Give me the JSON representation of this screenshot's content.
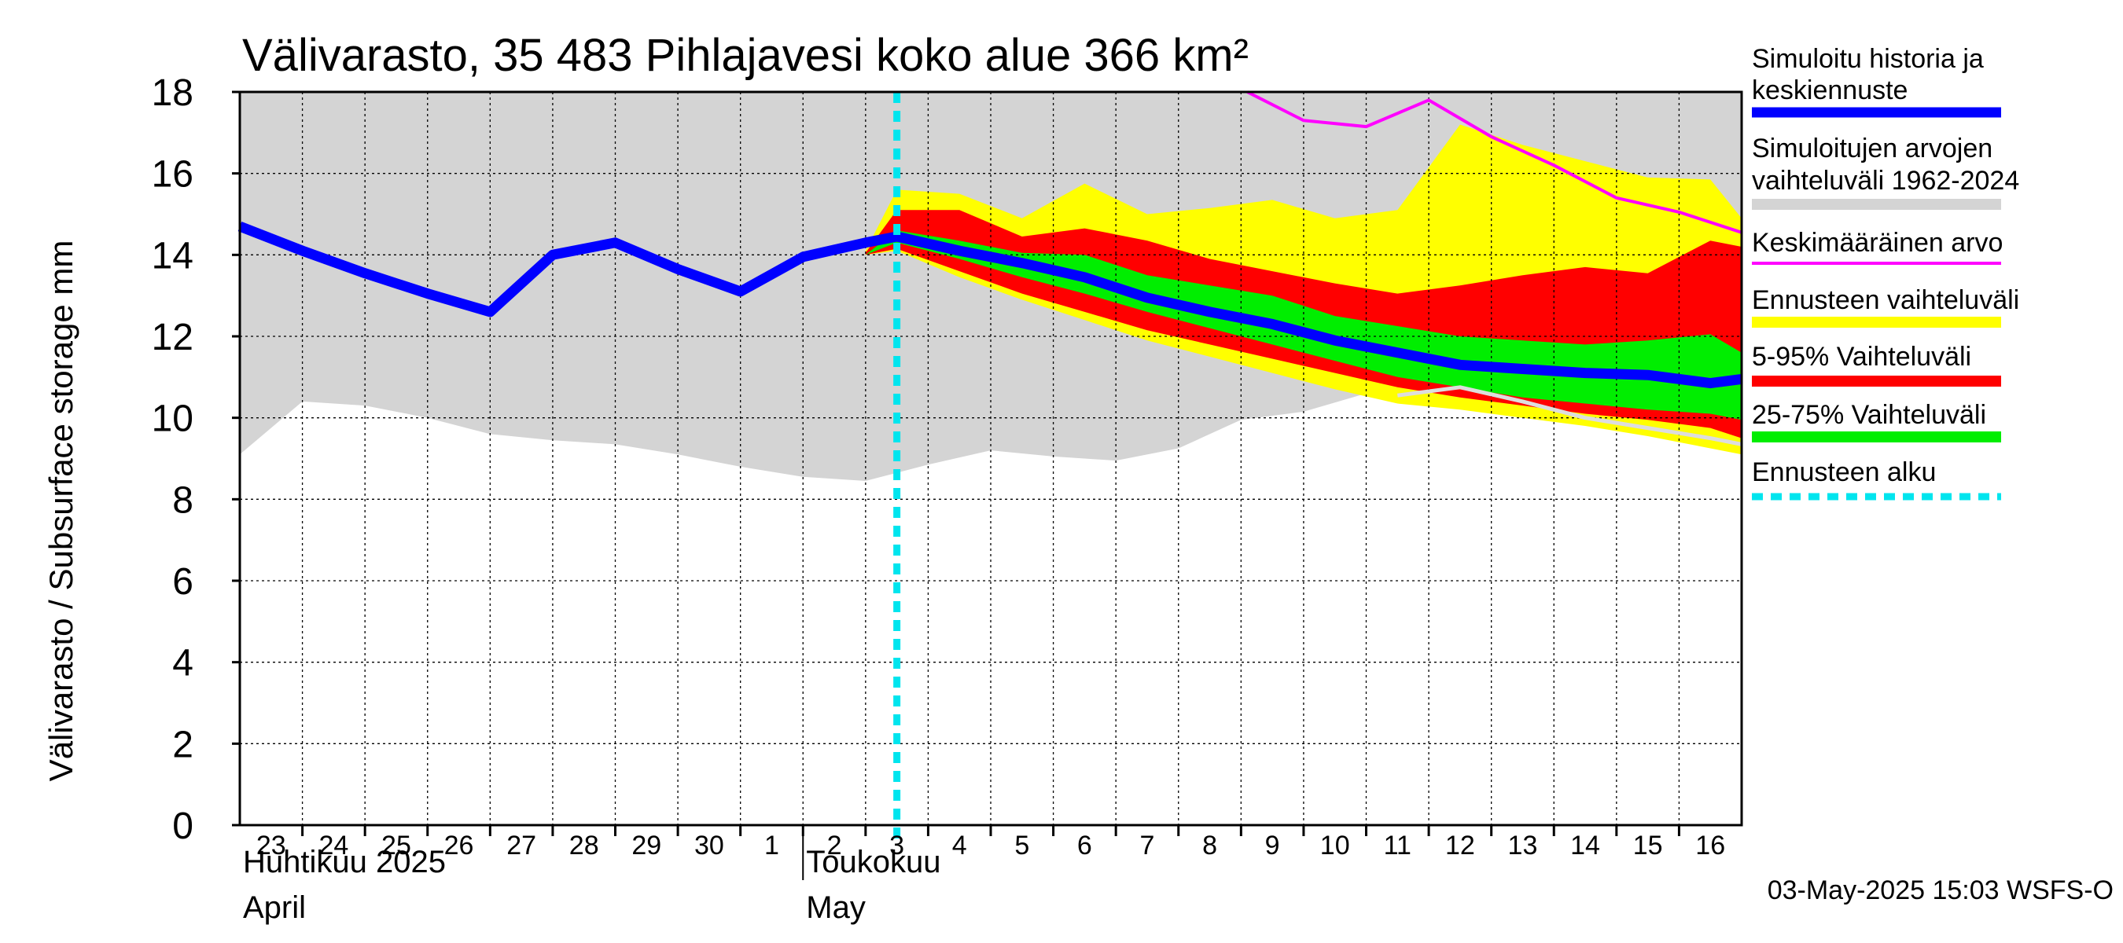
{
  "chart_data": {
    "type": "area",
    "title": "Välivarasto, 35 483 Pihlajavesi koko alue 366 km²",
    "ylabel": "Välivarasto / Subsurface storage  mm",
    "ylim": [
      0,
      18
    ],
    "yticks": [
      "0",
      "2",
      "4",
      "6",
      "8",
      "10",
      "12",
      "14",
      "16",
      "18"
    ],
    "xlim": [
      -0.5,
      23.5
    ],
    "xticks": [
      "23",
      "24",
      "25",
      "26",
      "27",
      "28",
      "29",
      "30",
      "1",
      "2",
      "3",
      "4",
      "5",
      "6",
      "7",
      "8",
      "9",
      "10",
      "11",
      "12",
      "13",
      "14",
      "15",
      "16"
    ],
    "month_labels": [
      {
        "line1": "Huhtikuu  2025",
        "line2": "April",
        "at": -0.5
      },
      {
        "line1": "Toukokuu",
        "line2": "May",
        "at": 8.5
      }
    ],
    "forecast_start_x": 10.0,
    "timestamp": "03-May-2025 15:03 WSFS-O",
    "colors": {
      "hist_band": "#d4d4d4",
      "forecast_range": "#ffff00",
      "p5_95": "#ff0000",
      "p25_75": "#00ee00",
      "median": "#0000ff",
      "mean": "#ff00ff",
      "forecast_start": "#00e5ee",
      "light_line": "#dddddd"
    },
    "series": [
      {
        "name": "Simuloitujen arvojen vaihteluväli 1962-2024",
        "kind": "band",
        "x": [
          -0.5,
          0.5,
          1.5,
          2.5,
          3.5,
          4.5,
          5.5,
          6.5,
          7.5,
          8.5,
          9.5,
          10.5,
          11.5,
          12.5,
          13.5,
          14.5,
          15.5,
          16.5,
          17.5,
          18.5,
          19.5,
          20.5,
          21.5,
          22.5,
          23.5
        ],
        "low": [
          9.1,
          10.4,
          10.3,
          10.0,
          9.6,
          9.45,
          9.35,
          9.1,
          8.8,
          8.55,
          8.45,
          8.85,
          9.2,
          9.05,
          8.95,
          9.25,
          9.95,
          10.15,
          10.6,
          10.85,
          10.45,
          10.15,
          9.85,
          9.5,
          9.2
        ],
        "high": [
          18,
          18,
          18,
          18,
          18,
          18,
          18,
          18,
          18,
          18,
          18,
          18,
          18,
          18,
          18,
          18,
          18,
          18,
          18,
          18,
          18,
          18,
          18,
          18,
          18
        ]
      },
      {
        "name": "Ennusteen vaihteluväli",
        "kind": "band",
        "x": [
          9.5,
          10,
          11,
          12,
          13,
          14,
          15,
          16,
          17,
          18,
          19,
          20,
          21,
          22,
          23,
          23.5
        ],
        "low": [
          14.0,
          14.1,
          13.45,
          12.9,
          12.4,
          11.9,
          11.5,
          11.1,
          10.7,
          10.35,
          10.2,
          10.0,
          9.8,
          9.55,
          9.25,
          9.1
        ],
        "high": [
          14.1,
          15.6,
          15.5,
          14.9,
          15.75,
          15.0,
          15.15,
          15.35,
          14.9,
          15.1,
          17.2,
          16.7,
          16.3,
          15.9,
          15.85,
          14.9
        ]
      },
      {
        "name": "5-95% Vaihteluväli",
        "kind": "band",
        "x": [
          9.5,
          10,
          11,
          12,
          13,
          14,
          15,
          16,
          17,
          18,
          19,
          20,
          21,
          22,
          23,
          23.5
        ],
        "low": [
          14.0,
          14.15,
          13.6,
          13.05,
          12.6,
          12.15,
          11.8,
          11.45,
          11.1,
          10.75,
          10.5,
          10.3,
          10.1,
          9.95,
          9.75,
          9.5
        ],
        "high": [
          14.05,
          15.1,
          15.1,
          14.45,
          14.65,
          14.35,
          13.9,
          13.6,
          13.3,
          13.05,
          13.25,
          13.5,
          13.7,
          13.55,
          14.35,
          14.2
        ]
      },
      {
        "name": "25-75% Vaihteluväli",
        "kind": "band",
        "x": [
          9.5,
          10,
          11,
          12,
          13,
          14,
          15,
          16,
          17,
          18,
          19,
          20,
          21,
          22,
          23,
          23.5
        ],
        "low": [
          14.0,
          14.3,
          13.9,
          13.45,
          13.05,
          12.6,
          12.2,
          11.8,
          11.4,
          11.0,
          10.75,
          10.5,
          10.35,
          10.2,
          10.1,
          9.95
        ],
        "high": [
          14.0,
          14.6,
          14.35,
          14.05,
          14.0,
          13.5,
          13.25,
          13.0,
          12.5,
          12.25,
          12.0,
          11.9,
          11.8,
          11.9,
          12.05,
          11.6
        ]
      },
      {
        "name": "Light grey reference line",
        "kind": "line",
        "x": [
          18,
          19,
          20,
          21,
          22,
          23,
          23.5
        ],
        "y": [
          10.55,
          10.75,
          10.4,
          10.0,
          9.75,
          9.5,
          9.35
        ]
      },
      {
        "name": "Keskimääräinen arvo",
        "kind": "line",
        "x": [
          15.6,
          16.5,
          17.5,
          18.5,
          19.5,
          20.5,
          21.5,
          22.5,
          23.5
        ],
        "y": [
          18.0,
          17.3,
          17.15,
          17.8,
          16.9,
          16.2,
          15.4,
          15.05,
          14.55
        ]
      },
      {
        "name": "Simuloitu historia ja keskiennuste",
        "kind": "line",
        "x": [
          -0.5,
          0.5,
          1.5,
          2.5,
          3.5,
          4.5,
          5.5,
          6.5,
          7.5,
          8.5,
          9.5,
          10.0,
          11,
          12,
          13,
          14,
          15,
          16,
          17,
          18,
          19,
          20,
          21,
          22,
          23,
          23.5
        ],
        "y": [
          14.7,
          14.1,
          13.55,
          13.05,
          12.6,
          14.0,
          14.3,
          13.65,
          13.1,
          13.95,
          14.3,
          14.45,
          14.1,
          13.8,
          13.45,
          12.95,
          12.6,
          12.3,
          11.9,
          11.6,
          11.3,
          11.2,
          11.1,
          11.05,
          10.85,
          10.95
        ]
      }
    ],
    "legend": [
      {
        "line1": "Simuloitu historia ja",
        "line2": "keskiennuste",
        "color": "#0000ff",
        "style": "thick"
      },
      {
        "line1": "Simuloitujen arvojen",
        "line2": "vaihteluväli 1962-2024",
        "color": "#d4d4d4",
        "style": "band"
      },
      {
        "line1": "Keskimääräinen arvo",
        "line2": "",
        "color": "#ff00ff",
        "style": "thin"
      },
      {
        "line1": "Ennusteen vaihteluväli",
        "line2": "",
        "color": "#ffff00",
        "style": "band"
      },
      {
        "line1": "5-95% Vaihteluväli",
        "line2": "",
        "color": "#ff0000",
        "style": "band"
      },
      {
        "line1": "25-75% Vaihteluväli",
        "line2": "",
        "color": "#00ee00",
        "style": "band"
      },
      {
        "line1": "Ennusteen alku",
        "line2": "",
        "color": "#00e5ee",
        "style": "dashed"
      }
    ]
  }
}
